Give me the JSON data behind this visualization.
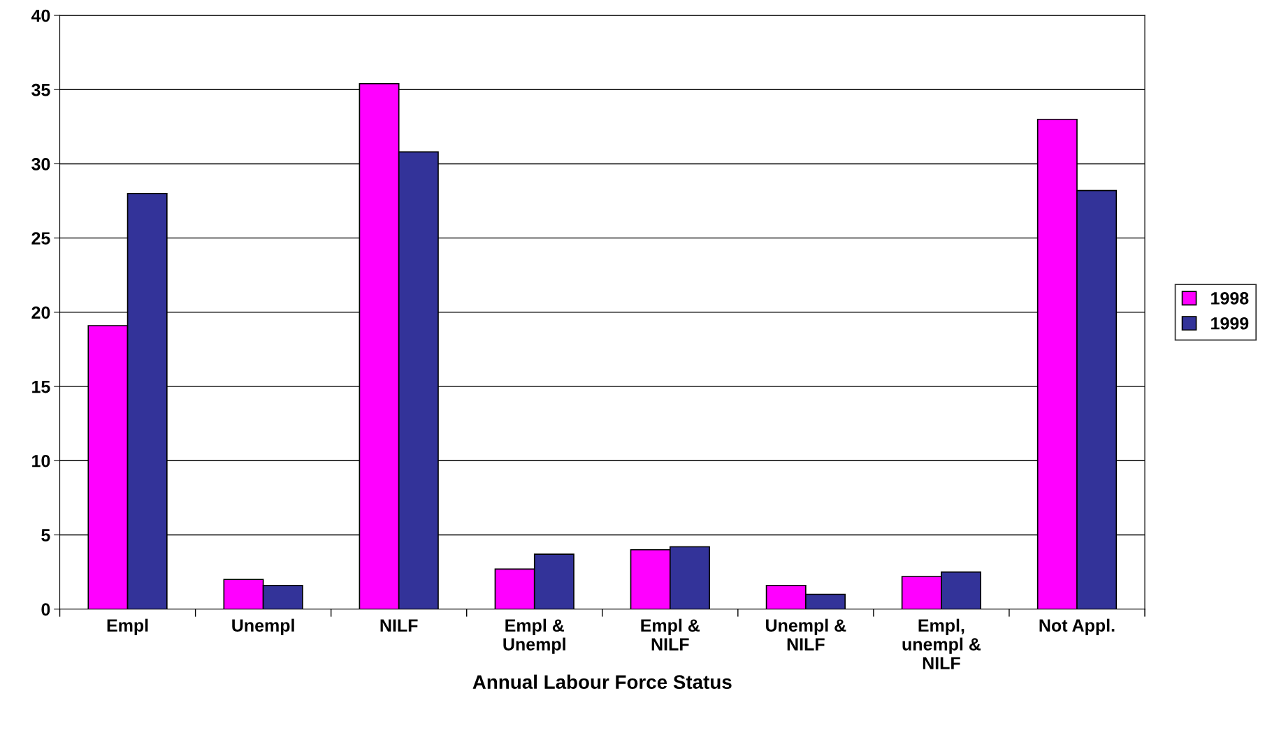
{
  "chart_data": {
    "type": "bar",
    "xlabel": "Annual Labour Force Status",
    "categories": [
      "Empl",
      "Unempl",
      "NILF",
      "Empl &\nUnempl",
      "Empl &\nNILF",
      "Unempl &\nNILF",
      "Empl,\nunempl &\nNILF",
      "Not Appl."
    ],
    "series": [
      {
        "name": "1998",
        "color": "#ff00ff",
        "values": [
          19.1,
          2.0,
          35.4,
          2.7,
          4.0,
          1.6,
          2.2,
          33.0
        ]
      },
      {
        "name": "1999",
        "color": "#333399",
        "values": [
          28.0,
          1.6,
          30.8,
          3.7,
          4.2,
          1.0,
          2.5,
          28.2
        ]
      }
    ],
    "ylim": [
      0,
      40
    ],
    "yticks": [
      0,
      5,
      10,
      15,
      20,
      25,
      30,
      35,
      40
    ],
    "grid": "y",
    "legend": "right"
  }
}
